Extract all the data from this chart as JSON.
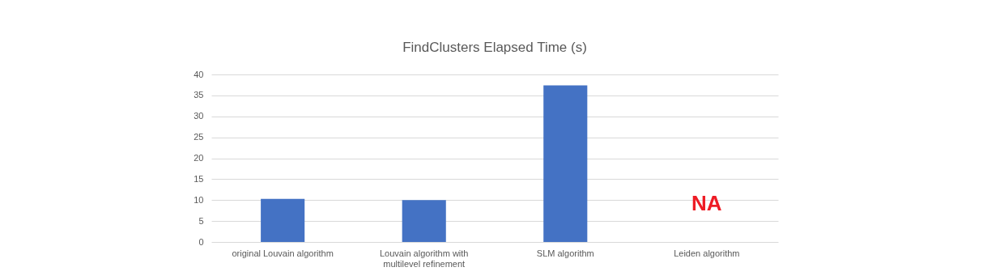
{
  "chart_data": {
    "type": "bar",
    "title": "FindClusters Elapsed Time (s)",
    "categories": [
      "original Louvain algorithm",
      "Louvain algorithm with multilevel refinement",
      "SLM algorithm",
      "Leiden algorithm"
    ],
    "values": [
      10.3,
      10.0,
      37.4,
      null
    ],
    "color": "#4472c4",
    "ylim": [
      0,
      40
    ],
    "yticks": [
      0,
      5,
      10,
      15,
      20,
      25,
      30,
      35,
      40
    ],
    "grid": "y",
    "annotations": [
      "NA"
    ]
  }
}
